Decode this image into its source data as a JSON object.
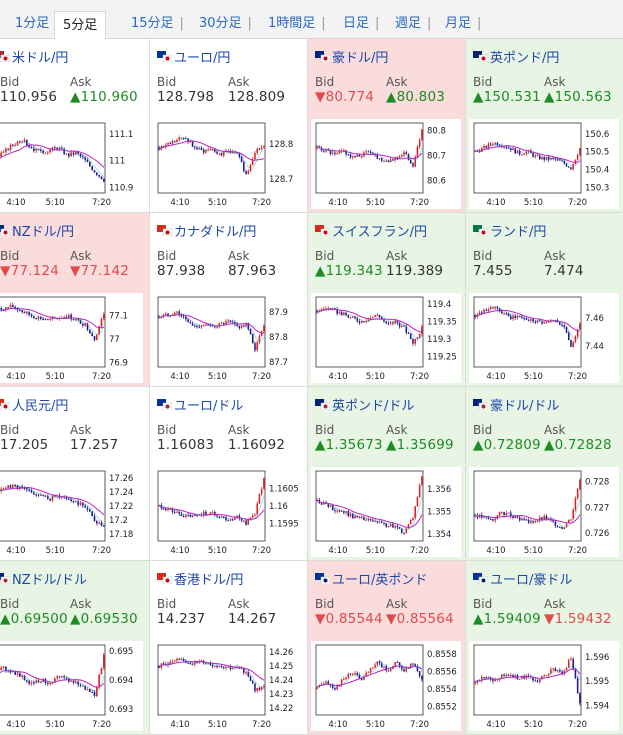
{
  "tabs": [
    {
      "label": "1分足",
      "active": false
    },
    {
      "label": "5分足",
      "active": true
    },
    {
      "label": "15分足",
      "active": false
    },
    {
      "label": "30分足",
      "active": false
    },
    {
      "label": "1時間足",
      "active": false
    },
    {
      "label": "日足",
      "active": false
    },
    {
      "label": "週足",
      "active": false
    },
    {
      "label": "月足",
      "active": false
    }
  ],
  "colors": {
    "up": "#1e8c24",
    "down": "#e04a4a",
    "link": "#1d48a8",
    "candle_up": "#e02020",
    "candle_down": "#1a1a8c",
    "ma": "#c020c0",
    "ma2": "#20a0c0"
  },
  "bid_label": "Bid",
  "ask_label": "Ask",
  "pairs": [
    {
      "name": "米ドル/円",
      "flag": "us-jp-flag-icon",
      "state": "flat",
      "bid": "110.956",
      "bid_dir": "flat",
      "ask": "▲110.960",
      "ask_dir": "up",
      "chart_data": {
        "type": "candlestick",
        "x_ticks": [
          "4:10",
          "5:10",
          "7:20"
        ],
        "y_ticks": [
          "111.1",
          "111",
          "110.9"
        ],
        "ylim": [
          110.88,
          111.14
        ],
        "profile": [
          111.0,
          111.03,
          111.06,
          111.08,
          111.05,
          111.03,
          111.04,
          111.05,
          111.02,
          111.03,
          111.0,
          110.96,
          110.93
        ]
      }
    },
    {
      "name": "ユーロ/円",
      "flag": "eu-jp-flag-icon",
      "state": "flat",
      "bid": "128.798",
      "bid_dir": "flat",
      "ask": "128.809",
      "ask_dir": "flat",
      "chart_data": {
        "type": "candlestick",
        "x_ticks": [
          "4:10",
          "5:10",
          "7:20"
        ],
        "y_ticks": [
          "128.8",
          "128.7"
        ],
        "ylim": [
          128.66,
          128.86
        ],
        "profile": [
          128.79,
          128.8,
          128.81,
          128.82,
          128.79,
          128.78,
          128.79,
          128.77,
          128.78,
          128.77,
          128.71,
          128.78,
          128.79
        ]
      }
    },
    {
      "name": "豪ドル/円",
      "flag": "au-jp-flag-icon",
      "state": "down",
      "bid": "▼80.774",
      "bid_dir": "down",
      "ask": "▲80.803",
      "ask_dir": "up",
      "chart_data": {
        "type": "candlestick",
        "x_ticks": [
          "4:10",
          "5:10",
          "7:20"
        ],
        "y_ticks": [
          "80.8",
          "80.7",
          "80.6"
        ],
        "ylim": [
          80.55,
          80.83
        ],
        "profile": [
          80.73,
          80.72,
          80.7,
          80.72,
          80.69,
          80.7,
          80.72,
          80.69,
          80.68,
          80.69,
          80.71,
          80.66,
          80.8
        ]
      }
    },
    {
      "name": "英ポンド/円",
      "flag": "gb-jp-flag-icon",
      "state": "up",
      "bid": "▲150.531",
      "bid_dir": "up",
      "ask": "▲150.563",
      "ask_dir": "up",
      "chart_data": {
        "type": "candlestick",
        "x_ticks": [
          "4:10",
          "5:10",
          "7:20"
        ],
        "y_ticks": [
          "150.6",
          "150.5",
          "150.4",
          "150.3"
        ],
        "ylim": [
          150.27,
          150.66
        ],
        "profile": [
          150.5,
          150.52,
          150.55,
          150.54,
          150.52,
          150.49,
          150.5,
          150.47,
          150.46,
          150.46,
          150.44,
          150.41,
          150.52
        ]
      }
    },
    {
      "name": "NZドル/円",
      "flag": "nz-jp-flag-icon",
      "state": "down",
      "bid": "▼77.124",
      "bid_dir": "down",
      "ask": "▼77.142",
      "ask_dir": "down",
      "chart_data": {
        "type": "candlestick",
        "x_ticks": [
          "4:10",
          "5:10",
          "7:20"
        ],
        "y_ticks": [
          "77.1",
          "77",
          "76.9"
        ],
        "ylim": [
          76.88,
          77.18
        ],
        "profile": [
          77.12,
          77.13,
          77.14,
          77.12,
          77.1,
          77.09,
          77.08,
          77.09,
          77.1,
          77.08,
          77.06,
          77.0,
          77.11
        ]
      }
    },
    {
      "name": "カナダドル/円",
      "flag": "ca-jp-flag-icon",
      "state": "flat",
      "bid": "87.938",
      "bid_dir": "flat",
      "ask": "87.963",
      "ask_dir": "flat",
      "chart_data": {
        "type": "candlestick",
        "x_ticks": [
          "4:10",
          "5:10",
          "7:20"
        ],
        "y_ticks": [
          "87.9",
          "87.8",
          "87.7"
        ],
        "ylim": [
          87.68,
          87.96
        ],
        "profile": [
          87.88,
          87.89,
          87.9,
          87.87,
          87.84,
          87.85,
          87.84,
          87.85,
          87.86,
          87.84,
          87.85,
          87.75,
          87.85
        ]
      }
    },
    {
      "name": "スイスフラン/円",
      "flag": "ch-jp-flag-icon",
      "state": "up",
      "bid": "▲119.343",
      "bid_dir": "up",
      "ask": "119.389",
      "ask_dir": "flat",
      "chart_data": {
        "type": "candlestick",
        "x_ticks": [
          "4:10",
          "5:10",
          "7:20"
        ],
        "y_ticks": [
          "119.4",
          "119.35",
          "119.3",
          "119.25"
        ],
        "ylim": [
          119.22,
          119.42
        ],
        "profile": [
          119.38,
          119.39,
          119.38,
          119.37,
          119.36,
          119.35,
          119.36,
          119.37,
          119.34,
          119.35,
          119.33,
          119.29,
          119.33
        ]
      }
    },
    {
      "name": "ランド/円",
      "flag": "za-jp-flag-icon",
      "state": "up",
      "bid": "7.455",
      "bid_dir": "flat",
      "ask": "7.474",
      "ask_dir": "flat",
      "chart_data": {
        "type": "candlestick",
        "x_ticks": [
          "4:10",
          "5:10",
          "7:20"
        ],
        "y_ticks": [
          "7.46",
          "7.44"
        ],
        "ylim": [
          7.425,
          7.475
        ],
        "profile": [
          7.462,
          7.466,
          7.468,
          7.464,
          7.46,
          7.461,
          7.459,
          7.458,
          7.457,
          7.458,
          7.456,
          7.44,
          7.455
        ]
      }
    },
    {
      "name": "人民元/円",
      "flag": "cn-jp-flag-icon",
      "state": "flat",
      "bid": "17.205",
      "bid_dir": "flat",
      "ask": "17.257",
      "ask_dir": "flat",
      "chart_data": {
        "type": "candlestick",
        "x_ticks": [
          "4:10",
          "5:10",
          "7:20"
        ],
        "y_ticks": [
          "17.26",
          "17.24",
          "17.22",
          "17.2",
          "17.18"
        ],
        "ylim": [
          17.17,
          17.27
        ],
        "profile": [
          17.24,
          17.245,
          17.25,
          17.245,
          17.24,
          17.235,
          17.23,
          17.235,
          17.23,
          17.225,
          17.22,
          17.2,
          17.19
        ]
      }
    },
    {
      "name": "ユーロ/ドル",
      "flag": "eu-us-flag-icon",
      "state": "flat",
      "bid": "1.16083",
      "bid_dir": "flat",
      "ask": "1.16092",
      "ask_dir": "flat",
      "chart_data": {
        "type": "candlestick",
        "x_ticks": [
          "4:10",
          "5:10",
          "7:20"
        ],
        "y_ticks": [
          "1.1605",
          "1.16",
          "1.1595"
        ],
        "ylim": [
          1.159,
          1.161
        ],
        "profile": [
          1.16,
          1.1599,
          1.1598,
          1.1597,
          1.1597,
          1.1598,
          1.1598,
          1.1597,
          1.1596,
          1.1597,
          1.1595,
          1.1598,
          1.1608
        ]
      }
    },
    {
      "name": "英ポンド/ドル",
      "flag": "gb-us-flag-icon",
      "state": "up",
      "bid": "▲1.35673",
      "bid_dir": "up",
      "ask": "▲1.35699",
      "ask_dir": "up",
      "chart_data": {
        "type": "candlestick",
        "x_ticks": [
          "4:10",
          "5:10",
          "7:20"
        ],
        "y_ticks": [
          "1.356",
          "1.355",
          "1.354"
        ],
        "ylim": [
          1.3537,
          1.3568
        ],
        "profile": [
          1.3555,
          1.3553,
          1.3551,
          1.355,
          1.3548,
          1.3547,
          1.3546,
          1.3545,
          1.3544,
          1.3543,
          1.3541,
          1.3548,
          1.3566
        ]
      }
    },
    {
      "name": "豪ドル/ドル",
      "flag": "au-us-flag-icon",
      "state": "up",
      "bid": "▲0.72809",
      "bid_dir": "up",
      "ask": "▲0.72828",
      "ask_dir": "up",
      "chart_data": {
        "type": "candlestick",
        "x_ticks": [
          "4:10",
          "5:10",
          "7:20"
        ],
        "y_ticks": [
          "0.728",
          "0.727",
          "0.726"
        ],
        "ylim": [
          0.7257,
          0.7284
        ],
        "profile": [
          0.7267,
          0.7266,
          0.7265,
          0.7268,
          0.7267,
          0.7266,
          0.7264,
          0.7265,
          0.7266,
          0.7264,
          0.7262,
          0.7266,
          0.7281
        ]
      }
    },
    {
      "name": "NZドル/ドル",
      "flag": "nz-us-flag-icon",
      "state": "up",
      "bid": "▲0.69500",
      "bid_dir": "up",
      "ask": "▲0.69530",
      "ask_dir": "up",
      "chart_data": {
        "type": "candlestick",
        "x_ticks": [
          "4:10",
          "5:10",
          "7:20"
        ],
        "y_ticks": [
          "0.695",
          "0.694",
          "0.693"
        ],
        "ylim": [
          0.6928,
          0.6952
        ],
        "profile": [
          0.6942,
          0.6944,
          0.6943,
          0.6941,
          0.6939,
          0.694,
          0.6939,
          0.6941,
          0.694,
          0.6939,
          0.6937,
          0.6935,
          0.6948
        ]
      }
    },
    {
      "name": "香港ドル/円",
      "flag": "hk-jp-flag-icon",
      "state": "flat",
      "bid": "14.237",
      "bid_dir": "flat",
      "ask": "14.267",
      "ask_dir": "flat",
      "chart_data": {
        "type": "candlestick",
        "x_ticks": [
          "4:10",
          "5:10",
          "7:20"
        ],
        "y_ticks": [
          "14.26",
          "14.25",
          "14.24",
          "14.23",
          "14.22"
        ],
        "ylim": [
          14.215,
          14.265
        ],
        "profile": [
          14.25,
          14.252,
          14.254,
          14.253,
          14.252,
          14.253,
          14.251,
          14.25,
          14.249,
          14.248,
          14.246,
          14.233,
          14.235
        ]
      }
    },
    {
      "name": "ユーロ/英ポンド",
      "flag": "eu-gb-flag-icon",
      "state": "down",
      "bid": "▼0.85544",
      "bid_dir": "down",
      "ask": "▼0.85564",
      "ask_dir": "down",
      "chart_data": {
        "type": "candlestick",
        "x_ticks": [
          "4:10",
          "5:10",
          "7:20"
        ],
        "y_ticks": [
          "0.8558",
          "0.8556",
          "0.8554",
          "0.8552"
        ],
        "ylim": [
          0.8551,
          0.8559
        ],
        "profile": [
          0.8554,
          0.8555,
          0.8554,
          0.8555,
          0.8556,
          0.8555,
          0.8556,
          0.8557,
          0.8556,
          0.8557,
          0.8556,
          0.8557,
          0.8555
        ]
      }
    },
    {
      "name": "ユーロ/豪ドル",
      "flag": "eu-au-flag-icon",
      "state": "up",
      "bid": "▲1.59409",
      "bid_dir": "up",
      "ask": "▼1.59432",
      "ask_dir": "down",
      "chart_data": {
        "type": "candlestick",
        "x_ticks": [
          "4:10",
          "5:10",
          "7:20"
        ],
        "y_ticks": [
          "1.596",
          "1.595",
          "1.594"
        ],
        "ylim": [
          1.5936,
          1.5965
        ],
        "profile": [
          1.5949,
          1.5952,
          1.595,
          1.5952,
          1.5953,
          1.5951,
          1.5952,
          1.595,
          1.5953,
          1.5955,
          1.5953,
          1.596,
          1.5941
        ]
      }
    }
  ]
}
